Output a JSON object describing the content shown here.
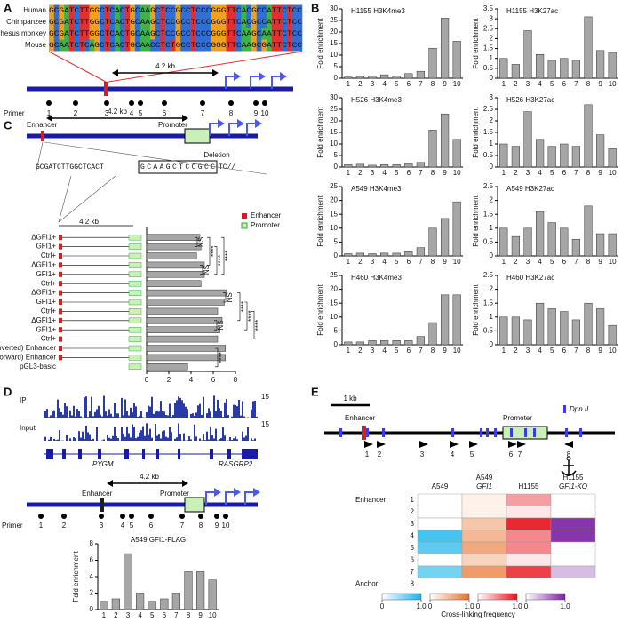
{
  "labels": {
    "A": "A",
    "B": "B",
    "C": "C",
    "D": "D",
    "E": "E"
  },
  "panel_a": {
    "species": [
      "Human",
      "Chimpanzee",
      "Rhesus monkey",
      "Mouse"
    ],
    "sequences": [
      "GCGATCTTGGCTCACTGCAAGCTCCGCCTCCCGGGTTCACGCCATTCTCC",
      "GCGATCTTGGCTCACTGCAAGCTCCGCCTCCCGGGTTCACGCCATTCTCC",
      "GCGATCTTGGCTCACTGCAAGCTCCGCCTCCCGGGTTCAAGCAATTCTCC",
      "GCAATCTCAGCTCACTGCAACCTCTGCCTCCCGGGTTCAAGCGATTCTCC"
    ],
    "distance": "4.2 kb",
    "primer_label": "Primer",
    "primers": [
      "1",
      "2",
      "3",
      "4",
      "5",
      "6",
      "7",
      "8",
      "9",
      "10"
    ]
  },
  "panel_c": {
    "enhancer": "Enhancer",
    "promoter": "Promoter",
    "distance": "4.2 kb",
    "deletion": "Deletion",
    "seq_left": "GCGATCTTGGCTCACT",
    "seq_deleted": "GCAAGCTCCGCC",
    "seq_right": "TC//",
    "small_distance": "4.2 kb",
    "legend": [
      "Enhancer",
      "Promoter"
    ]
  },
  "panel_d": {
    "tracks": [
      "IP",
      "Input"
    ],
    "track_max": [
      "15",
      "15"
    ],
    "genes": [
      "PYGM",
      "RASGRP2"
    ],
    "distance": "4.2 kb",
    "enhancer": "Enhancer",
    "promoter": "Promoter",
    "primer_label": "Primer",
    "primers": [
      "1",
      "2",
      "3",
      "4",
      "5",
      "6",
      "7",
      "8",
      "9",
      "10"
    ]
  },
  "panel_e": {
    "scale": "1 kb",
    "site": "Dpn II",
    "enhancer": "Enhancer",
    "promoter": "Promoter",
    "primers": [
      "1",
      "2",
      "3",
      "4",
      "5",
      "6",
      "7",
      "8"
    ]
  },
  "chart_data": [
    {
      "type": "bar",
      "title": "H1155 H3K4me3",
      "ylabel": "Fold enrichment",
      "categories": [
        "1",
        "2",
        "3",
        "4",
        "5",
        "6",
        "7",
        "8",
        "9",
        "10"
      ],
      "values": [
        0.5,
        0.8,
        1,
        1.5,
        1,
        2,
        3,
        13,
        26,
        16
      ],
      "color": "#a6a6a6",
      "ylim": [
        0,
        30
      ],
      "yticks": [
        0,
        5,
        10,
        15,
        20,
        25,
        30
      ]
    },
    {
      "type": "bar",
      "title": "H1155 H3K27ac",
      "ylabel": "Fold enrichment",
      "categories": [
        "1",
        "2",
        "3",
        "4",
        "5",
        "6",
        "7",
        "8",
        "9",
        "10"
      ],
      "values": [
        1,
        0.7,
        2.4,
        1.2,
        0.9,
        1,
        0.9,
        3.1,
        1.4,
        1.3
      ],
      "color": "#a6a6a6",
      "ylim": [
        0,
        3.5
      ],
      "yticks": [
        0,
        0.5,
        1,
        1.5,
        2,
        2.5,
        3,
        3.5
      ]
    },
    {
      "type": "bar",
      "title": "H526 H3K4me3",
      "ylabel": "Fold enrichment",
      "categories": [
        "1",
        "2",
        "3",
        "4",
        "5",
        "6",
        "7",
        "8",
        "9",
        "10"
      ],
      "values": [
        1,
        1.2,
        0.8,
        1,
        1,
        1.5,
        2,
        16,
        23,
        12
      ],
      "color": "#a6a6a6",
      "ylim": [
        0,
        30
      ],
      "yticks": [
        0,
        5,
        10,
        15,
        20,
        25,
        30
      ]
    },
    {
      "type": "bar",
      "title": "H526 H3K27ac",
      "ylabel": "Fold enrichment",
      "categories": [
        "1",
        "2",
        "3",
        "4",
        "5",
        "6",
        "7",
        "8",
        "9",
        "10"
      ],
      "values": [
        1,
        0.9,
        2.4,
        1.2,
        0.9,
        1,
        0.9,
        2.7,
        1.4,
        0.8
      ],
      "color": "#a6a6a6",
      "ylim": [
        0,
        3
      ],
      "yticks": [
        0,
        0.5,
        1,
        1.5,
        2,
        2.5,
        3
      ]
    },
    {
      "type": "bar",
      "title": "A549 H3K4me3",
      "ylabel": "Fold enrichment",
      "categories": [
        "1",
        "2",
        "3",
        "4",
        "5",
        "6",
        "7",
        "8",
        "9",
        "10"
      ],
      "values": [
        0.8,
        1,
        0.8,
        1,
        1,
        1.5,
        3,
        10,
        13.5,
        19.5
      ],
      "color": "#a6a6a6",
      "ylim": [
        0,
        25
      ],
      "yticks": [
        0,
        5,
        10,
        15,
        20,
        25
      ]
    },
    {
      "type": "bar",
      "title": "A549 H3K27ac",
      "ylabel": "Fold enrichment",
      "categories": [
        "1",
        "2",
        "3",
        "4",
        "5",
        "6",
        "7",
        "8",
        "9",
        "10"
      ],
      "values": [
        1,
        0.7,
        1,
        1.6,
        1.2,
        1,
        0.6,
        1.8,
        0.8,
        0.8
      ],
      "color": "#a6a6a6",
      "ylim": [
        0,
        2.5
      ],
      "yticks": [
        0,
        0.5,
        1,
        1.5,
        2,
        2.5
      ]
    },
    {
      "type": "bar",
      "title": "H460 H3K4me3",
      "ylabel": "Fold enrichment",
      "categories": [
        "1",
        "2",
        "3",
        "4",
        "5",
        "6",
        "7",
        "8",
        "9",
        "10"
      ],
      "values": [
        1,
        1,
        1.5,
        1.5,
        1.5,
        1.5,
        3,
        8,
        18,
        18
      ],
      "color": "#a6a6a6",
      "ylim": [
        0,
        25
      ],
      "yticks": [
        0,
        5,
        10,
        15,
        20,
        25
      ]
    },
    {
      "type": "bar",
      "title": "H460 H3K27ac",
      "ylabel": "Fold enrichment",
      "categories": [
        "1",
        "2",
        "3",
        "4",
        "5",
        "6",
        "7",
        "8",
        "9",
        "10"
      ],
      "values": [
        1,
        1,
        0.9,
        1.5,
        1.3,
        1.2,
        0.9,
        1.5,
        1.3,
        0.7
      ],
      "color": "#a6a6a6",
      "ylim": [
        0,
        2.5
      ],
      "yticks": [
        0,
        0.5,
        1,
        1.5,
        2,
        2.5
      ]
    },
    {
      "type": "hbar",
      "categories": [
        "ΔGFI1+",
        "GFI1+",
        "Ctrl+",
        "ΔGFI1+",
        "GFI1+",
        "Ctrl+",
        "ΔGFI1+",
        "GFI1+",
        "Ctrl+",
        "ΔGFI1+",
        "GFI1+",
        "Ctrl+",
        "(Inverted) Enhancer",
        "(Forward) Enhancer",
        "pGL3-basic"
      ],
      "values": [
        4.8,
        4.9,
        4.5,
        5.2,
        5.2,
        4.9,
        7.2,
        7,
        6.4,
        6.8,
        6.6,
        6.4,
        7.1,
        7.1,
        3.7
      ],
      "color": "#a6a6a6",
      "xlim": [
        0,
        8
      ],
      "xticks": [
        0,
        2,
        4,
        6,
        8
      ],
      "annotations": [
        "NS",
        "NS",
        "****",
        "****",
        "****",
        "NS",
        "NS",
        "****",
        "****",
        "****",
        "****"
      ]
    },
    {
      "type": "bar",
      "title": "A549 GFI1-FLAG",
      "ylabel": "Fold enrichment",
      "categories": [
        "1",
        "2",
        "3",
        "4",
        "5",
        "6",
        "7",
        "8",
        "9",
        "10"
      ],
      "values": [
        1,
        1.3,
        6.8,
        2,
        1,
        1.3,
        2,
        4.6,
        4.6,
        3.6
      ],
      "color": "#a6a6a6",
      "ylim": [
        0,
        8
      ],
      "yticks": [
        0,
        2,
        4,
        6,
        8
      ]
    },
    {
      "type": "heatmap",
      "columns": [
        [
          "A549"
        ],
        [
          "A549",
          "GFI1"
        ],
        [
          "H1155"
        ],
        [
          "H1155",
          "GFI1-KO"
        ]
      ],
      "colors": [
        "#18b4ea",
        "#e8702a",
        "#e8101a",
        "#7a1fa0"
      ],
      "row_group_label": "Enhancer",
      "rows": [
        "1",
        "2",
        "3",
        "4",
        "5",
        "6",
        "7"
      ],
      "anchor_label": "Anchor:",
      "anchor_row": "8",
      "values": [
        [
          0,
          0.1,
          0.4,
          0
        ],
        [
          0,
          0.1,
          0.1,
          0
        ],
        [
          0,
          0.4,
          0.9,
          0.9
        ],
        [
          0.8,
          0.5,
          0.5,
          0.9
        ],
        [
          0.7,
          0.6,
          0.5,
          0
        ],
        [
          0,
          0.3,
          0.1,
          0
        ],
        [
          0.6,
          0.7,
          0.8,
          0.3
        ]
      ],
      "colorbar_ticks": [
        0,
        {
          "value": 1,
          "label": "1.0"
        }
      ],
      "colorbar_label": "Cross-linking frequency"
    }
  ]
}
